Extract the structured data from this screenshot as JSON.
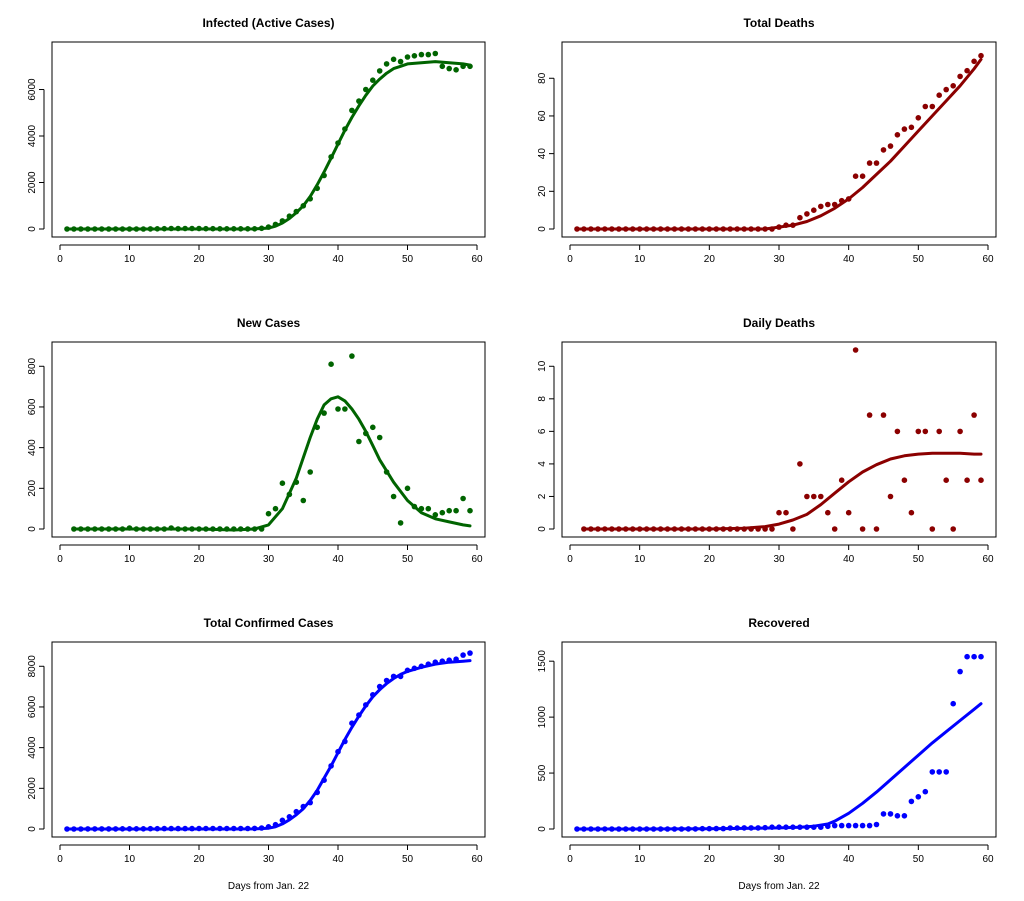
{
  "chart_data": [
    {
      "type": "scatter",
      "title": "Infected (Active Cases)",
      "xlabel": "",
      "ylabel": "",
      "xlim": [
        0,
        60
      ],
      "ylim": [
        0,
        7700
      ],
      "xticks": [
        0,
        10,
        20,
        30,
        40,
        50,
        60
      ],
      "yticks": [
        0,
        2000,
        4000,
        6000
      ],
      "color": "#006400",
      "fit_line": true,
      "x": [
        1,
        2,
        3,
        4,
        5,
        6,
        7,
        8,
        9,
        10,
        11,
        12,
        13,
        14,
        15,
        16,
        17,
        18,
        19,
        20,
        21,
        22,
        23,
        24,
        25,
        26,
        27,
        28,
        29,
        30,
        31,
        32,
        33,
        34,
        35,
        36,
        37,
        38,
        39,
        40,
        41,
        42,
        43,
        44,
        45,
        46,
        47,
        48,
        49,
        50,
        51,
        52,
        53,
        54,
        55,
        56,
        57,
        58,
        59
      ],
      "y": [
        1,
        1,
        1,
        1,
        1,
        1,
        1,
        1,
        1,
        1,
        1,
        1,
        5,
        10,
        15,
        20,
        20,
        20,
        20,
        20,
        15,
        15,
        10,
        10,
        10,
        10,
        10,
        10,
        30,
        80,
        200,
        350,
        550,
        750,
        1000,
        1300,
        1750,
        2300,
        3100,
        3700,
        4300,
        5100,
        5500,
        6000,
        6400,
        6800,
        7100,
        7300,
        7200,
        7400,
        7450,
        7500,
        7500,
        7550,
        7000,
        6900,
        6850,
        7000,
        7000
      ],
      "fit_x": [
        1,
        5,
        10,
        15,
        20,
        25,
        28,
        30,
        31,
        32,
        33,
        34,
        35,
        36,
        37,
        38,
        39,
        40,
        41,
        42,
        43,
        44,
        45,
        46,
        47,
        48,
        49,
        50,
        52,
        54,
        56,
        58,
        59
      ],
      "fit_y": [
        0,
        0,
        0,
        0,
        0,
        0,
        5,
        40,
        120,
        260,
        450,
        700,
        1000,
        1400,
        1900,
        2450,
        3050,
        3650,
        4250,
        4800,
        5300,
        5750,
        6150,
        6450,
        6700,
        6900,
        7000,
        7100,
        7150,
        7200,
        7150,
        7100,
        7050
      ]
    },
    {
      "type": "scatter",
      "title": "Total Deaths",
      "xlabel": "",
      "ylabel": "",
      "xlim": [
        0,
        60
      ],
      "ylim": [
        0,
        95
      ],
      "xticks": [
        0,
        10,
        20,
        30,
        40,
        50,
        60
      ],
      "yticks": [
        0,
        20,
        40,
        60,
        80
      ],
      "color": "#8B0000",
      "fit_line": true,
      "x": [
        1,
        2,
        3,
        4,
        5,
        6,
        7,
        8,
        9,
        10,
        11,
        12,
        13,
        14,
        15,
        16,
        17,
        18,
        19,
        20,
        21,
        22,
        23,
        24,
        25,
        26,
        27,
        28,
        29,
        30,
        31,
        32,
        33,
        34,
        35,
        36,
        37,
        38,
        39,
        40,
        41,
        42,
        43,
        44,
        45,
        46,
        47,
        48,
        49,
        50,
        51,
        52,
        53,
        54,
        55,
        56,
        57,
        58,
        59
      ],
      "y": [
        0,
        0,
        0,
        0,
        0,
        0,
        0,
        0,
        0,
        0,
        0,
        0,
        0,
        0,
        0,
        0,
        0,
        0,
        0,
        0,
        0,
        0,
        0,
        0,
        0,
        0,
        0,
        0,
        0,
        1,
        2,
        2,
        6,
        8,
        10,
        12,
        13,
        13,
        15,
        16,
        28,
        28,
        35,
        35,
        42,
        44,
        50,
        53,
        54,
        59,
        65,
        65,
        71,
        74,
        76,
        81,
        84,
        89,
        92
      ],
      "fit_x": [
        1,
        10,
        20,
        25,
        28,
        30,
        32,
        34,
        36,
        38,
        40,
        42,
        44,
        46,
        48,
        50,
        52,
        54,
        56,
        58,
        59
      ],
      "fit_y": [
        0,
        0,
        0,
        0,
        0,
        1,
        2,
        4,
        7,
        11,
        16,
        22,
        29,
        36,
        44,
        52,
        60,
        68,
        76,
        85,
        90
      ]
    },
    {
      "type": "scatter",
      "title": "New Cases",
      "xlabel": "",
      "ylabel": "",
      "xlim": [
        0,
        60
      ],
      "ylim": [
        0,
        880
      ],
      "xticks": [
        0,
        10,
        20,
        30,
        40,
        50,
        60
      ],
      "yticks": [
        0,
        200,
        400,
        600,
        800
      ],
      "color": "#006400",
      "fit_line": true,
      "x": [
        2,
        3,
        4,
        5,
        6,
        7,
        8,
        9,
        10,
        11,
        12,
        13,
        14,
        15,
        16,
        17,
        18,
        19,
        20,
        21,
        22,
        23,
        24,
        25,
        26,
        27,
        28,
        29,
        30,
        31,
        32,
        33,
        34,
        35,
        36,
        37,
        38,
        39,
        40,
        41,
        42,
        43,
        44,
        45,
        46,
        47,
        48,
        49,
        50,
        51,
        52,
        53,
        54,
        55,
        56,
        57,
        58,
        59
      ],
      "y": [
        0,
        0,
        0,
        0,
        0,
        0,
        0,
        0,
        5,
        0,
        0,
        0,
        0,
        0,
        5,
        0,
        0,
        0,
        0,
        0,
        0,
        0,
        0,
        0,
        0,
        0,
        0,
        0,
        75,
        100,
        225,
        170,
        230,
        140,
        280,
        500,
        570,
        810,
        590,
        590,
        850,
        430,
        470,
        500,
        450,
        280,
        160,
        30,
        200,
        110,
        100,
        100,
        70,
        80,
        90,
        90,
        150,
        90
      ],
      "fit_x": [
        2,
        10,
        20,
        25,
        28,
        30,
        32,
        34,
        36,
        37,
        38,
        39,
        40,
        41,
        42,
        43,
        44,
        45,
        46,
        48,
        50,
        52,
        54,
        56,
        58,
        59
      ],
      "fit_y": [
        0,
        0,
        0,
        -5,
        0,
        20,
        100,
        250,
        450,
        540,
        610,
        640,
        650,
        630,
        590,
        540,
        480,
        410,
        340,
        230,
        140,
        80,
        50,
        35,
        20,
        15
      ]
    },
    {
      "type": "scatter",
      "title": "Daily Deaths",
      "xlabel": "",
      "ylabel": "",
      "xlim": [
        0,
        60
      ],
      "ylim": [
        0,
        11
      ],
      "xticks": [
        0,
        10,
        20,
        30,
        40,
        50,
        60
      ],
      "yticks": [
        0,
        2,
        4,
        6,
        8,
        10
      ],
      "color": "#8B0000",
      "fit_line": true,
      "x": [
        2,
        3,
        4,
        5,
        6,
        7,
        8,
        9,
        10,
        11,
        12,
        13,
        14,
        15,
        16,
        17,
        18,
        19,
        20,
        21,
        22,
        23,
        24,
        25,
        26,
        27,
        28,
        29,
        30,
        31,
        32,
        33,
        34,
        35,
        36,
        37,
        38,
        39,
        40,
        41,
        42,
        43,
        44,
        45,
        46,
        47,
        48,
        49,
        50,
        51,
        52,
        53,
        54,
        55,
        56,
        57,
        58,
        59
      ],
      "y": [
        0,
        0,
        0,
        0,
        0,
        0,
        0,
        0,
        0,
        0,
        0,
        0,
        0,
        0,
        0,
        0,
        0,
        0,
        0,
        0,
        0,
        0,
        0,
        0,
        0,
        0,
        0,
        0,
        1,
        1,
        0,
        4,
        2,
        2,
        2,
        1,
        0,
        3,
        1,
        11,
        0,
        7,
        0,
        7,
        2,
        6,
        3,
        1,
        6,
        6,
        0,
        6,
        3,
        0,
        6,
        3,
        7,
        3
      ],
      "fit_x": [
        2,
        10,
        20,
        25,
        28,
        30,
        32,
        34,
        36,
        38,
        40,
        42,
        44,
        46,
        48,
        50,
        52,
        54,
        56,
        58,
        59
      ],
      "fit_y": [
        0,
        0,
        0,
        0.05,
        0.15,
        0.3,
        0.55,
        0.9,
        1.5,
        2.2,
        2.9,
        3.5,
        3.95,
        4.3,
        4.5,
        4.6,
        4.65,
        4.65,
        4.65,
        4.6,
        4.6
      ]
    },
    {
      "type": "scatter",
      "title": "Total Confirmed Cases",
      "xlabel": "Days from Jan. 22",
      "ylabel": "",
      "xlim": [
        0,
        60
      ],
      "ylim": [
        0,
        8800
      ],
      "xticks": [
        0,
        10,
        20,
        30,
        40,
        50,
        60
      ],
      "yticks": [
        0,
        2000,
        4000,
        6000,
        8000
      ],
      "color": "#0000FF",
      "fit_line": true,
      "x": [
        1,
        2,
        3,
        4,
        5,
        6,
        7,
        8,
        9,
        10,
        11,
        12,
        13,
        14,
        15,
        16,
        17,
        18,
        19,
        20,
        21,
        22,
        23,
        24,
        25,
        26,
        27,
        28,
        29,
        30,
        31,
        32,
        33,
        34,
        35,
        36,
        37,
        38,
        39,
        40,
        41,
        42,
        43,
        44,
        45,
        46,
        47,
        48,
        49,
        50,
        51,
        52,
        53,
        54,
        55,
        56,
        57,
        58,
        59
      ],
      "y": [
        1,
        1,
        2,
        3,
        4,
        4,
        4,
        4,
        11,
        11,
        11,
        11,
        15,
        15,
        19,
        19,
        20,
        20,
        20,
        23,
        25,
        25,
        25,
        25,
        25,
        25,
        25,
        30,
        50,
        110,
        210,
        430,
        600,
        850,
        1100,
        1300,
        1800,
        2400,
        3100,
        3800,
        4300,
        5200,
        5600,
        6100,
        6600,
        7000,
        7300,
        7500,
        7500,
        7800,
        7900,
        8000,
        8100,
        8200,
        8250,
        8300,
        8350,
        8550,
        8650
      ],
      "fit_x": [
        1,
        10,
        20,
        25,
        28,
        30,
        31,
        32,
        33,
        34,
        35,
        36,
        37,
        38,
        39,
        40,
        41,
        42,
        43,
        44,
        45,
        46,
        47,
        48,
        49,
        50,
        52,
        54,
        56,
        58,
        59
      ],
      "fit_y": [
        0,
        0,
        0,
        0,
        5,
        40,
        110,
        250,
        450,
        700,
        1000,
        1400,
        1900,
        2500,
        3100,
        3750,
        4400,
        5000,
        5550,
        6050,
        6500,
        6850,
        7150,
        7400,
        7600,
        7750,
        7950,
        8100,
        8200,
        8250,
        8280
      ]
    },
    {
      "type": "scatter",
      "title": "Recovered",
      "xlabel": "Days from Jan. 22",
      "ylabel": "",
      "xlim": [
        0,
        60
      ],
      "ylim": [
        0,
        1600
      ],
      "xticks": [
        0,
        10,
        20,
        30,
        40,
        50,
        60
      ],
      "yticks": [
        0,
        500,
        1000,
        1500
      ],
      "color": "#0000FF",
      "fit_line": true,
      "x": [
        1,
        2,
        3,
        4,
        5,
        6,
        7,
        8,
        9,
        10,
        11,
        12,
        13,
        14,
        15,
        16,
        17,
        18,
        19,
        20,
        21,
        22,
        23,
        24,
        25,
        26,
        27,
        28,
        29,
        30,
        31,
        32,
        33,
        34,
        35,
        36,
        37,
        38,
        39,
        40,
        41,
        42,
        43,
        44,
        45,
        46,
        47,
        48,
        49,
        50,
        51,
        52,
        53,
        54,
        55,
        56,
        57,
        58,
        59
      ],
      "y": [
        0,
        0,
        0,
        0,
        0,
        0,
        0,
        0,
        0,
        0,
        0,
        0,
        0,
        0,
        0,
        0,
        1,
        1,
        3,
        3,
        4,
        4,
        9,
        9,
        10,
        10,
        10,
        12,
        16,
        16,
        16,
        16,
        16,
        16,
        16,
        16,
        24,
        30,
        30,
        30,
        30,
        30,
        30,
        40,
        135,
        135,
        118,
        118,
        247,
        288,
        333,
        510,
        510,
        510,
        1120,
        1407,
        1540,
        1540,
        1540
      ],
      "fit_x": [
        1,
        10,
        20,
        25,
        30,
        33,
        35,
        37,
        38,
        40,
        42,
        44,
        46,
        48,
        50,
        52,
        54,
        56,
        58,
        59
      ],
      "fit_y": [
        0,
        0,
        2,
        5,
        10,
        15,
        25,
        45,
        70,
        140,
        230,
        330,
        440,
        550,
        660,
        770,
        870,
        970,
        1070,
        1120
      ]
    }
  ]
}
